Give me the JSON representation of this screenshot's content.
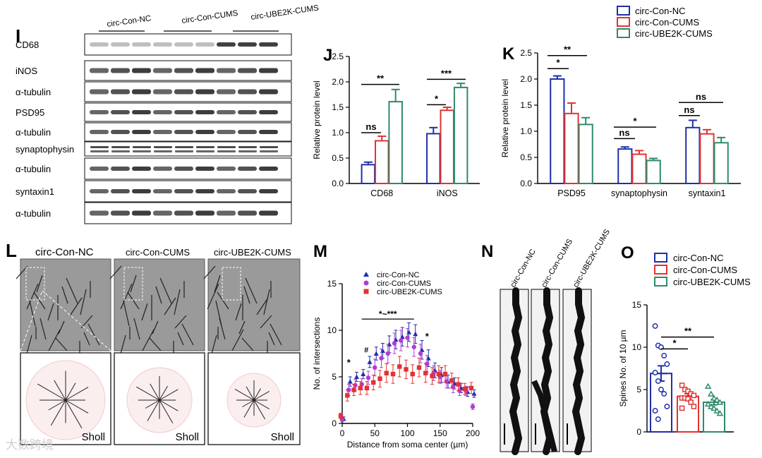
{
  "panel_letters": {
    "I": "I",
    "J": "J",
    "K": "K",
    "L": "L",
    "M": "M",
    "N": "N",
    "O": "O"
  },
  "colors": {
    "nc": "#1f2fa8",
    "cums": "#e23232",
    "ube": "#2e8b6a",
    "star": "#7b2cf0"
  },
  "western": {
    "groups": [
      "circ-Con-NC",
      "circ-Con-CUMS",
      "circ-UBE2K-CUMS"
    ],
    "rows": [
      "CD68",
      "iNOS",
      "α-tubulin",
      "PSD95",
      "α-tubulin",
      "synaptophysin",
      "α-tubulin",
      "syntaxin1",
      "α-tubulin"
    ]
  },
  "legend_top": [
    "circ-Con-NC",
    "circ-Con-CUMS",
    "circ-UBE2K-CUMS"
  ],
  "chart_data": [
    {
      "id": "J",
      "type": "bar",
      "categories": [
        "CD68",
        "iNOS"
      ],
      "series": [
        {
          "name": "circ-Con-NC",
          "values": [
            0.37,
            0.98
          ],
          "errors": [
            0.05,
            0.12
          ]
        },
        {
          "name": "circ-Con-CUMS",
          "values": [
            0.84,
            1.44
          ],
          "errors": [
            0.09,
            0.06
          ]
        },
        {
          "name": "circ-UBE2K-CUMS",
          "values": [
            1.61,
            1.89
          ],
          "errors": [
            0.24,
            0.08
          ]
        }
      ],
      "ylabel": "Relative protein level",
      "ylim": [
        0,
        2.5
      ],
      "yticks": [
        "0.0",
        "0.5",
        "1.0",
        "1.5",
        "2.0",
        "2.5"
      ],
      "annotations": [
        "**",
        "ns",
        "***",
        "*"
      ]
    },
    {
      "id": "K",
      "type": "bar",
      "categories": [
        "PSD95",
        "synaptophysin",
        "syntaxin1"
      ],
      "series": [
        {
          "name": "circ-Con-NC",
          "values": [
            2.0,
            0.66,
            1.07
          ],
          "errors": [
            0.06,
            0.04,
            0.14
          ]
        },
        {
          "name": "circ-Con-CUMS",
          "values": [
            1.34,
            0.56,
            0.95
          ],
          "errors": [
            0.2,
            0.07,
            0.08
          ]
        },
        {
          "name": "circ-UBE2K-CUMS",
          "values": [
            1.13,
            0.44,
            0.78
          ],
          "errors": [
            0.13,
            0.04,
            0.1
          ]
        }
      ],
      "ylabel": "Relative protein level",
      "ylim": [
        0,
        2.5
      ],
      "yticks": [
        "0.0",
        "0.5",
        "1.0",
        "1.5",
        "2.0",
        "2.5"
      ],
      "annotations": [
        "**",
        "*",
        "ns",
        "*",
        "ns",
        "ns"
      ]
    },
    {
      "id": "M",
      "type": "scatter",
      "x": [
        0,
        10,
        20,
        30,
        40,
        50,
        60,
        70,
        80,
        90,
        100,
        110,
        120,
        130,
        140,
        150,
        160,
        170,
        180,
        190,
        200
      ],
      "series": [
        {
          "name": "circ-Con-NC",
          "values": [
            0.5,
            4.5,
            5.0,
            5.3,
            6.6,
            7.5,
            7.8,
            8.5,
            9.0,
            9.3,
            9.8,
            9.6,
            7.9,
            7.0,
            5.7,
            5.2,
            4.5,
            4.3,
            3.8,
            3.4,
            3.2
          ],
          "errors": [
            0.2,
            0.5,
            0.5,
            0.5,
            0.6,
            0.7,
            0.8,
            0.9,
            1.0,
            1.0,
            1.0,
            1.0,
            1.0,
            0.9,
            0.8,
            0.8,
            0.7,
            0.6,
            0.5,
            0.5,
            0.4
          ]
        },
        {
          "name": "circ-Con-CUMS",
          "values": [
            0.4,
            3.6,
            4.1,
            4.2,
            4.9,
            6.0,
            7.0,
            7.5,
            8.6,
            8.9,
            9.2,
            8.2,
            7.5,
            6.4,
            5.4,
            5.0,
            4.5,
            3.9,
            3.5,
            3.5,
            1.8
          ],
          "errors": [
            0.2,
            0.6,
            0.6,
            0.6,
            0.7,
            0.9,
            1.0,
            1.0,
            1.1,
            1.1,
            1.0,
            1.0,
            1.0,
            0.9,
            0.8,
            0.7,
            0.7,
            0.6,
            0.5,
            0.5,
            0.3
          ]
        },
        {
          "name": "circ-UBE2K-CUMS",
          "values": [
            0.8,
            3.0,
            3.6,
            3.8,
            3.8,
            4.4,
            4.8,
            5.4,
            5.3,
            6.1,
            5.8,
            5.3,
            6.0,
            5.4,
            5.1,
            5.3,
            5.3,
            4.6,
            4.2,
            3.7,
            3.8
          ],
          "errors": [
            0.3,
            0.6,
            0.6,
            0.7,
            0.7,
            0.8,
            0.9,
            1.0,
            1.0,
            1.1,
            1.0,
            1.0,
            1.0,
            1.0,
            0.9,
            0.9,
            0.9,
            0.8,
            0.7,
            0.6,
            0.6
          ]
        }
      ],
      "xlabel": "Distance from soma center (µm)",
      "ylabel": "No. of intersections",
      "xlim": [
        0,
        200
      ],
      "ylim": [
        0,
        15
      ],
      "xticks": [
        "0",
        "50",
        "100",
        "150",
        "200"
      ],
      "yticks": [
        "0",
        "5",
        "10",
        "15"
      ],
      "annotations": [
        "*~***",
        "*",
        "#",
        "*"
      ]
    },
    {
      "id": "O",
      "type": "bar",
      "categories": [
        "circ-Con-NC",
        "circ-Con-CUMS",
        "circ-UBE2K-CUMS"
      ],
      "values": [
        6.9,
        4.2,
        3.5
      ],
      "errors": [
        0.9,
        0.3,
        0.3
      ],
      "points": [
        [
          12.5,
          10.2,
          10.0,
          9.0,
          8.0,
          7.0,
          6.0,
          5.0,
          4.5,
          3.0,
          2.5,
          1.5
        ],
        [
          5.5,
          5.0,
          4.8,
          4.5,
          4.3,
          4.0,
          4.0,
          3.9,
          3.5,
          3.0,
          2.8
        ],
        [
          5.4,
          4.5,
          4.0,
          3.8,
          3.5,
          3.3,
          3.0,
          2.8,
          2.5,
          2.2
        ]
      ],
      "ylabel": "Spines No. of 10 µm",
      "ylim": [
        0,
        15
      ],
      "yticks": [
        "0",
        "5",
        "10",
        "15"
      ],
      "annotations": [
        "**",
        "*"
      ]
    }
  ],
  "legend_M": [
    "circ-Con-NC",
    "circ-Con-CUMS",
    "circ-UBE2K-CUMS"
  ],
  "legend_O": [
    "circ-Con-NC",
    "circ-Con-CUMS",
    "circ-UBE2K-CUMS"
  ],
  "panel_L": {
    "titles": [
      "circ-Con-NC",
      "circ-Con-CUMS",
      "circ-UBE2K-CUMS"
    ],
    "sholl": "Sholl"
  },
  "panel_N": {
    "titles": [
      "circ-Con-NC",
      "circ-Con-CUMS",
      "circ-UBE2K-CUMS"
    ]
  },
  "watermark": "大数跨境"
}
